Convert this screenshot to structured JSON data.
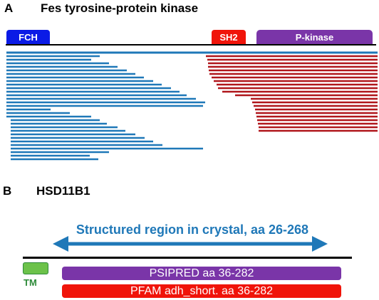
{
  "panel_a": {
    "letter": "A",
    "title": "Fes tyrosine-protein kinase",
    "domains": [
      {
        "id": "fch",
        "label": "FCH",
        "color": "#0b1be6"
      },
      {
        "id": "sh2",
        "label": "SH2",
        "color": "#f0140a"
      },
      {
        "id": "pkinase",
        "label": "P-kinase",
        "color": "#7a35a8"
      }
    ],
    "colors": {
      "n_terminal_reads": "#1f78b8",
      "c_terminal_reads": "#b0161b",
      "axis": "#000000"
    }
  },
  "panel_b": {
    "letter": "B",
    "title": "HSD11B1",
    "structured_region_label": "Structured region in crystal, aa 26-268",
    "tm_label": "TM",
    "psipred_label": "PSIPRED aa 36-282",
    "pfam_label": "PFAM adh_short. aa 36-282",
    "colors": {
      "arrow": "#1f78b8",
      "tm": "#6cc24a",
      "tm_text": "#2e8b3a",
      "psipred": "#7a35a8",
      "pfam": "#f0140a"
    }
  }
}
